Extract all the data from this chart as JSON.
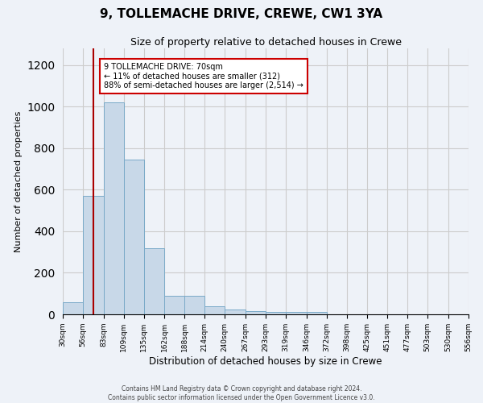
{
  "title": "9, TOLLEMACHE DRIVE, CREWE, CW1 3YA",
  "subtitle": "Size of property relative to detached houses in Crewe",
  "xlabel": "Distribution of detached houses by size in Crewe",
  "ylabel": "Number of detached properties",
  "bin_labels": [
    "30sqm",
    "56sqm",
    "83sqm",
    "109sqm",
    "135sqm",
    "162sqm",
    "188sqm",
    "214sqm",
    "240sqm",
    "267sqm",
    "293sqm",
    "319sqm",
    "346sqm",
    "372sqm",
    "398sqm",
    "425sqm",
    "451sqm",
    "477sqm",
    "503sqm",
    "530sqm",
    "556sqm"
  ],
  "bin_edges": [
    30,
    56,
    83,
    109,
    135,
    162,
    188,
    214,
    240,
    267,
    293,
    319,
    346,
    372,
    398,
    425,
    451,
    477,
    503,
    530,
    556
  ],
  "bar_heights": [
    60,
    570,
    1020,
    745,
    320,
    90,
    90,
    40,
    22,
    15,
    10,
    10,
    10,
    0,
    0,
    0,
    0,
    0,
    0,
    0
  ],
  "bar_color": "#c8d8e8",
  "bar_edgecolor": "#7aaac8",
  "property_line_x": 70,
  "property_line_color": "#aa0000",
  "annotation_text": "9 TOLLEMACHE DRIVE: 70sqm\n← 11% of detached houses are smaller (312)\n88% of semi-detached houses are larger (2,514) →",
  "annotation_box_color": "#ffffff",
  "annotation_box_edgecolor": "#cc0000",
  "ylim": [
    0,
    1280
  ],
  "yticks": [
    0,
    200,
    400,
    600,
    800,
    1000,
    1200
  ],
  "grid_color": "#cccccc",
  "bg_color": "#eef2f8",
  "footer1": "Contains HM Land Registry data © Crown copyright and database right 2024.",
  "footer2": "Contains public sector information licensed under the Open Government Licence v3.0."
}
